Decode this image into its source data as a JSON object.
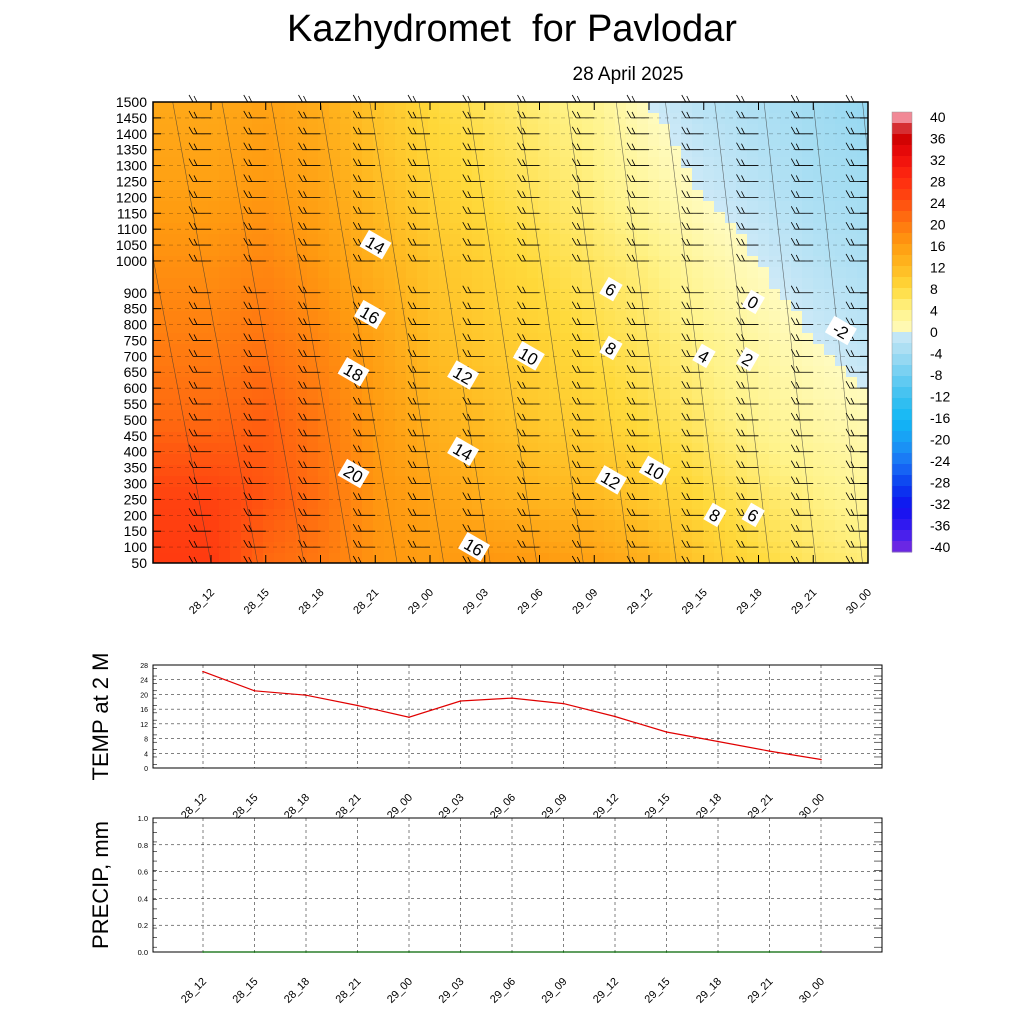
{
  "title": "Kazhydromet  for Pavlodar",
  "subtitle": "28 April 2025",
  "chart_data": [
    {
      "type": "heatmap",
      "description_units": "temperature (°C) vs height (m)",
      "x_ticks": [
        "28_12",
        "28_15",
        "28_18",
        "28_21",
        "29_00",
        "29_03",
        "29_06",
        "29_09",
        "29_12",
        "29_15",
        "29_18",
        "29_21",
        "30_00"
      ],
      "y_ticks": [
        "50",
        "100",
        "150",
        "200",
        "250",
        "300",
        "350",
        "400",
        "450",
        "500",
        "550",
        "600",
        "650",
        "700",
        "750",
        "800",
        "850",
        "900",
        "1000",
        "1050",
        "1100",
        "1150",
        "1200",
        "1250",
        "1300",
        "1350",
        "1400",
        "1450",
        "1500"
      ],
      "ylim": [
        50,
        1500
      ],
      "colorbar_ticks": [
        "40",
        "36",
        "32",
        "28",
        "24",
        "20",
        "16",
        "12",
        "8",
        "4",
        "0",
        "-4",
        "-8",
        "-12",
        "-16",
        "-20",
        "-24",
        "-28",
        "-32",
        "-36",
        "-40"
      ],
      "contour_labels": [
        {
          "text": "14",
          "t": 3.0,
          "h": 1050
        },
        {
          "text": "16",
          "t": 2.9,
          "h": 830
        },
        {
          "text": "18",
          "t": 2.6,
          "h": 650
        },
        {
          "text": "20",
          "t": 2.6,
          "h": 330
        },
        {
          "text": "12",
          "t": 4.6,
          "h": 640
        },
        {
          "text": "10",
          "t": 5.8,
          "h": 700
        },
        {
          "text": "14",
          "t": 4.6,
          "h": 400
        },
        {
          "text": "16",
          "t": 4.8,
          "h": 100
        },
        {
          "text": "6",
          "t": 7.3,
          "h": 910
        },
        {
          "text": "8",
          "t": 7.3,
          "h": 725
        },
        {
          "text": "12",
          "t": 7.3,
          "h": 310
        },
        {
          "text": "10",
          "t": 8.1,
          "h": 340
        },
        {
          "text": "4",
          "t": 9.0,
          "h": 700
        },
        {
          "text": "2",
          "t": 9.8,
          "h": 690
        },
        {
          "text": "0",
          "t": 9.9,
          "h": 870
        },
        {
          "text": "8",
          "t": 9.2,
          "h": 200
        },
        {
          "text": "6",
          "t": 9.9,
          "h": 200
        },
        {
          "text": "-2",
          "t": 11.5,
          "h": 780
        }
      ],
      "temperature_grid": {
        "times_index": [
          0,
          1,
          2,
          3,
          4,
          5,
          6,
          7,
          8,
          9,
          10,
          11,
          12
        ],
        "heights": [
          50,
          250,
          500,
          750,
          1000,
          1250,
          1500
        ],
        "values": [
          [
            26,
            21,
            19.5,
            16.5,
            15.5,
            16.5,
            16,
            15,
            13,
            10,
            8,
            6,
            5
          ],
          [
            25,
            23,
            20.5,
            16.5,
            15,
            13.5,
            12.5,
            12,
            10,
            8,
            6,
            4.5,
            3
          ],
          [
            21,
            22,
            19.5,
            16,
            13,
            11.5,
            10,
            9,
            7.5,
            5.5,
            3.5,
            2,
            1
          ],
          [
            19,
            20,
            18,
            15,
            11.5,
            10,
            9,
            7.5,
            6,
            4,
            2,
            0,
            -1.5
          ],
          [
            17,
            18,
            16,
            13,
            10.5,
            9,
            7.5,
            6,
            4.5,
            2,
            0,
            -2,
            -3
          ],
          [
            15,
            16,
            14.5,
            11.5,
            9,
            7.5,
            6,
            4.5,
            2,
            -0.5,
            -2,
            -3.5,
            -4
          ],
          [
            14,
            15,
            13.5,
            10.5,
            8,
            6.5,
            5,
            3.5,
            0,
            -2,
            -3,
            -4,
            -5
          ]
        ]
      }
    },
    {
      "type": "line",
      "ylabel": "TEMP at 2 M",
      "x": [
        "28_12",
        "28_15",
        "28_18",
        "28_21",
        "29_00",
        "29_03",
        "29_06",
        "29_09",
        "29_12",
        "29_15",
        "29_18",
        "29_21",
        "30_00"
      ],
      "y": [
        26.2,
        21,
        19.8,
        17,
        13.8,
        18.2,
        19,
        17.5,
        14,
        9.8,
        7.2,
        4.6,
        2.3
      ],
      "yticks": [
        "0",
        "4",
        "8",
        "12",
        "16",
        "20",
        "24",
        "28"
      ],
      "ylim": [
        0,
        28
      ],
      "color": "#e00000"
    },
    {
      "type": "line",
      "ylabel": "PRECIP, mm",
      "x": [
        "28_12",
        "28_15",
        "28_18",
        "28_21",
        "29_00",
        "29_03",
        "29_06",
        "29_09",
        "29_12",
        "29_15",
        "29_18",
        "29_21",
        "30_00"
      ],
      "y": [
        0,
        0,
        0,
        0,
        0,
        0,
        0,
        0,
        0,
        0,
        0,
        0,
        0
      ],
      "yticks": [
        "0.0",
        "0.2",
        "0.4",
        "0.6",
        "0.8",
        "1.0"
      ],
      "ylim": [
        0,
        1
      ],
      "color": "#006400"
    }
  ]
}
